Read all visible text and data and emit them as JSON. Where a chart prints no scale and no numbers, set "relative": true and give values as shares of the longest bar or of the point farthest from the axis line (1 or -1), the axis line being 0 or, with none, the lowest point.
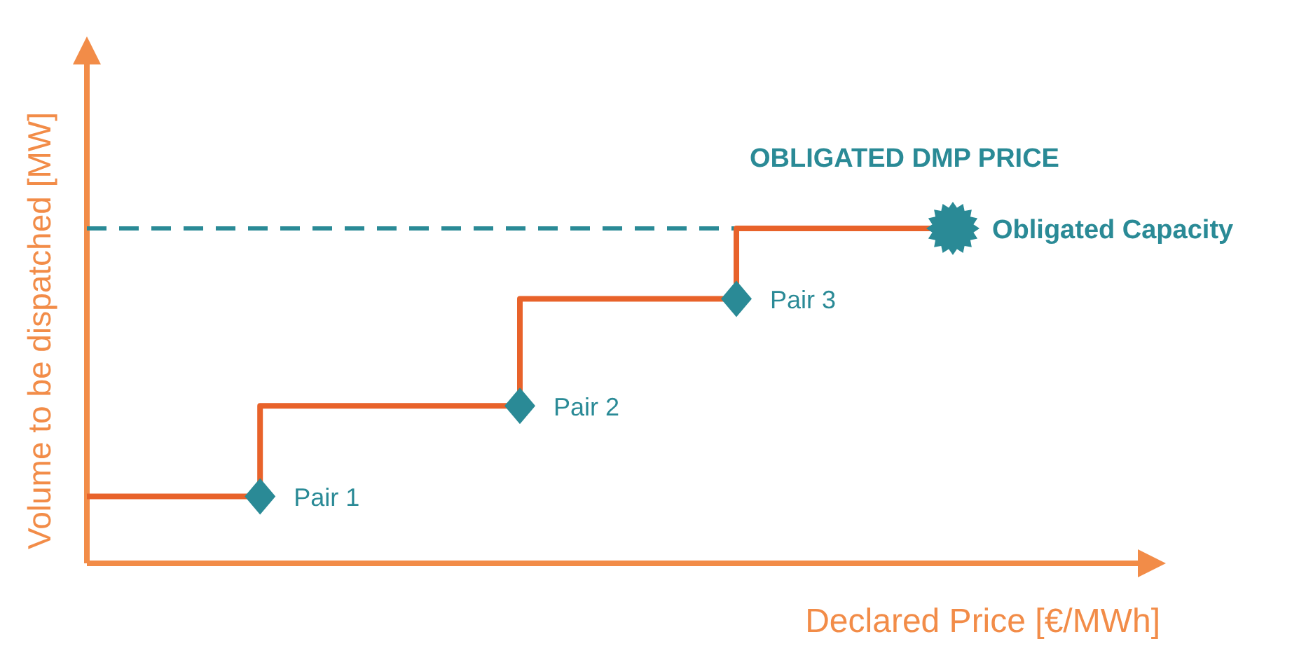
{
  "chart_data": {
    "type": "step",
    "relative": true,
    "xlabel": "Declared Price [€/MWh]",
    "ylabel": "Volume to be dispatched [MW]",
    "categories": [
      null,
      null,
      null,
      null,
      null,
      null,
      null,
      null,
      null,
      null,
      null,
      null,
      null,
      null,
      null,
      null,
      null,
      null,
      null,
      null,
      null
    ],
    "series": [
      {
        "color": "#e8622a",
        "values": [
          0.2,
          0.2,
          0.2,
          0.2,
          0.2,
          0.47,
          0.47,
          0.47,
          0.47,
          0.47,
          0.47,
          0.79,
          0.79,
          0.79,
          0.79,
          0.79,
          1,
          1,
          1,
          1,
          1
        ],
        "line_style": "solid"
      }
    ],
    "ref_lines": [
      {
        "axis": "y",
        "value": 1,
        "label": "OBLIGATED DMP PRICE",
        "color": "#2a8a96",
        "line_style": "dashed"
      }
    ],
    "annotations": [
      "Pair 1",
      "Pair 2",
      "Pair 3",
      "Obligated Capacity"
    ]
  }
}
